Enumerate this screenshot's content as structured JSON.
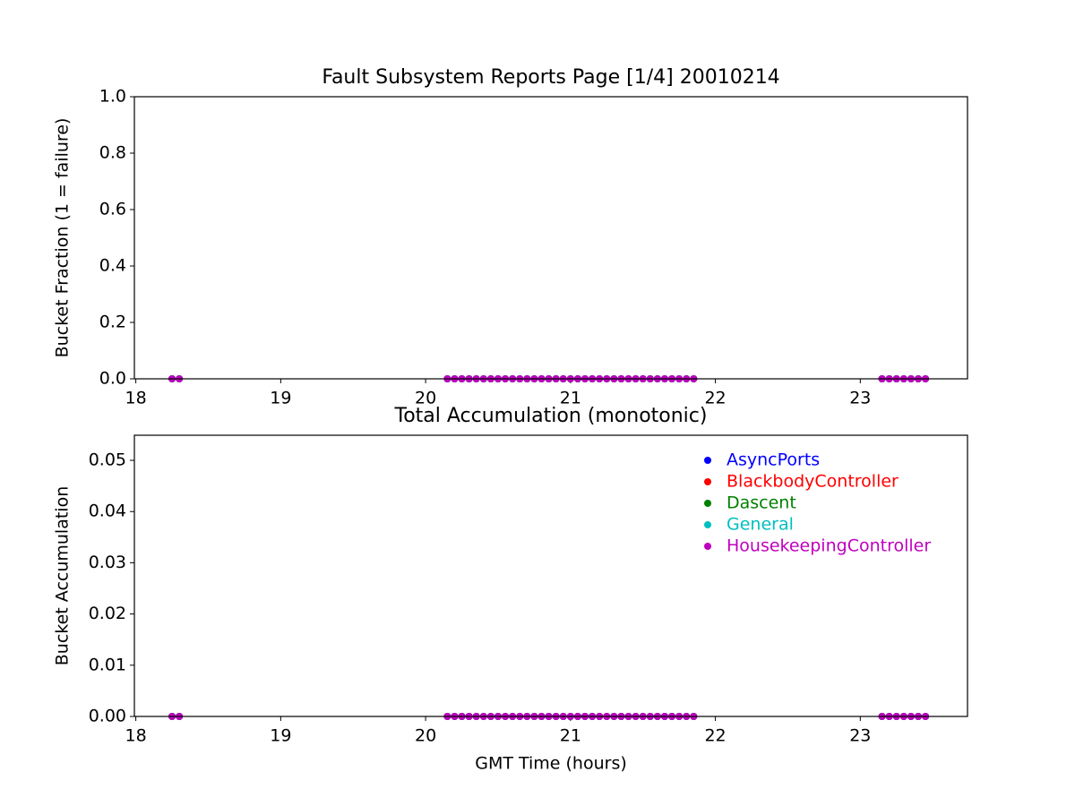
{
  "chart_data": [
    {
      "type": "scatter",
      "title": "Fault Subsystem Reports Page [1/4] 20010214",
      "y_label": "Bucket Fraction (1 = failure)",
      "x": [
        18.25,
        18.3,
        20.15,
        20.2,
        20.25,
        20.3,
        20.35,
        20.4,
        20.45,
        20.5,
        20.55,
        20.6,
        20.65,
        20.7,
        20.75,
        20.8,
        20.85,
        20.9,
        20.95,
        21.0,
        21.05,
        21.1,
        21.15,
        21.2,
        21.25,
        21.3,
        21.35,
        21.4,
        21.45,
        21.5,
        21.55,
        21.6,
        21.65,
        21.7,
        21.75,
        21.8,
        21.85,
        23.15,
        23.2,
        23.25,
        23.3,
        23.35,
        23.4,
        23.45
      ],
      "series": [
        {
          "color": "#0000ff",
          "values": [
            0,
            0,
            0,
            0,
            0,
            0,
            0,
            0,
            0,
            0,
            0,
            0,
            0,
            0,
            0,
            0,
            0,
            0,
            0,
            0,
            0,
            0,
            0,
            0,
            0,
            0,
            0,
            0,
            0,
            0,
            0,
            0,
            0,
            0,
            0,
            0,
            0,
            0,
            0,
            0,
            0,
            0,
            0,
            0
          ]
        },
        {
          "color": "#ff0000",
          "values": [
            0,
            0,
            0,
            0,
            0,
            0,
            0,
            0,
            0,
            0,
            0,
            0,
            0,
            0,
            0,
            0,
            0,
            0,
            0,
            0,
            0,
            0,
            0,
            0,
            0,
            0,
            0,
            0,
            0,
            0,
            0,
            0,
            0,
            0,
            0,
            0,
            0,
            0,
            0,
            0,
            0,
            0,
            0,
            0
          ]
        },
        {
          "color": "#008000",
          "values": [
            0,
            0,
            0,
            0,
            0,
            0,
            0,
            0,
            0,
            0,
            0,
            0,
            0,
            0,
            0,
            0,
            0,
            0,
            0,
            0,
            0,
            0,
            0,
            0,
            0,
            0,
            0,
            0,
            0,
            0,
            0,
            0,
            0,
            0,
            0,
            0,
            0,
            0,
            0,
            0,
            0,
            0,
            0,
            0
          ]
        },
        {
          "color": "#00bfbf",
          "values": [
            0,
            0,
            0,
            0,
            0,
            0,
            0,
            0,
            0,
            0,
            0,
            0,
            0,
            0,
            0,
            0,
            0,
            0,
            0,
            0,
            0,
            0,
            0,
            0,
            0,
            0,
            0,
            0,
            0,
            0,
            0,
            0,
            0,
            0,
            0,
            0,
            0,
            0,
            0,
            0,
            0,
            0,
            0,
            0
          ]
        },
        {
          "color": "#bf00bf",
          "values": [
            0,
            0,
            0,
            0,
            0,
            0,
            0,
            0,
            0,
            0,
            0,
            0,
            0,
            0,
            0,
            0,
            0,
            0,
            0,
            0,
            0,
            0,
            0,
            0,
            0,
            0,
            0,
            0,
            0,
            0,
            0,
            0,
            0,
            0,
            0,
            0,
            0,
            0,
            0,
            0,
            0,
            0,
            0,
            0
          ]
        }
      ],
      "xlim": [
        17.99,
        23.74
      ],
      "xticks": [
        18,
        19,
        20,
        21,
        22,
        23
      ],
      "ylim": [
        0,
        1
      ],
      "yticks": [
        {
          "value": 0,
          "label": "0.0"
        },
        {
          "value": 0.2,
          "label": "0.2"
        },
        {
          "value": 0.4,
          "label": "0.4"
        },
        {
          "value": 0.6,
          "label": "0.6"
        },
        {
          "value": 0.8,
          "label": "0.8"
        },
        {
          "value": 1,
          "label": "1.0"
        }
      ]
    },
    {
      "type": "scatter",
      "title": "Total Accumulation (monotonic)",
      "x_label": "GMT Time (hours)",
      "y_label": "Bucket Accumulation",
      "x": [
        18.25,
        18.3,
        20.15,
        20.2,
        20.25,
        20.3,
        20.35,
        20.4,
        20.45,
        20.5,
        20.55,
        20.6,
        20.65,
        20.7,
        20.75,
        20.8,
        20.85,
        20.9,
        20.95,
        21.0,
        21.05,
        21.1,
        21.15,
        21.2,
        21.25,
        21.3,
        21.35,
        21.4,
        21.45,
        21.5,
        21.55,
        21.6,
        21.65,
        21.7,
        21.75,
        21.8,
        21.85,
        23.15,
        23.2,
        23.25,
        23.3,
        23.35,
        23.4,
        23.45
      ],
      "series": [
        {
          "name": "AsyncPorts",
          "color": "#0000ff",
          "values": [
            0,
            0,
            0,
            0,
            0,
            0,
            0,
            0,
            0,
            0,
            0,
            0,
            0,
            0,
            0,
            0,
            0,
            0,
            0,
            0,
            0,
            0,
            0,
            0,
            0,
            0,
            0,
            0,
            0,
            0,
            0,
            0,
            0,
            0,
            0,
            0,
            0,
            0,
            0,
            0,
            0,
            0,
            0,
            0
          ]
        },
        {
          "name": "BlackbodyController",
          "color": "#ff0000",
          "values": [
            0,
            0,
            0,
            0,
            0,
            0,
            0,
            0,
            0,
            0,
            0,
            0,
            0,
            0,
            0,
            0,
            0,
            0,
            0,
            0,
            0,
            0,
            0,
            0,
            0,
            0,
            0,
            0,
            0,
            0,
            0,
            0,
            0,
            0,
            0,
            0,
            0,
            0,
            0,
            0,
            0,
            0,
            0,
            0
          ]
        },
        {
          "name": "Dascent",
          "color": "#008000",
          "values": [
            0,
            0,
            0,
            0,
            0,
            0,
            0,
            0,
            0,
            0,
            0,
            0,
            0,
            0,
            0,
            0,
            0,
            0,
            0,
            0,
            0,
            0,
            0,
            0,
            0,
            0,
            0,
            0,
            0,
            0,
            0,
            0,
            0,
            0,
            0,
            0,
            0,
            0,
            0,
            0,
            0,
            0,
            0,
            0
          ]
        },
        {
          "name": "General",
          "color": "#00bfbf",
          "values": [
            0,
            0,
            0,
            0,
            0,
            0,
            0,
            0,
            0,
            0,
            0,
            0,
            0,
            0,
            0,
            0,
            0,
            0,
            0,
            0,
            0,
            0,
            0,
            0,
            0,
            0,
            0,
            0,
            0,
            0,
            0,
            0,
            0,
            0,
            0,
            0,
            0,
            0,
            0,
            0,
            0,
            0,
            0,
            0
          ]
        },
        {
          "name": "HousekeepingController",
          "color": "#bf00bf",
          "values": [
            0,
            0,
            0,
            0,
            0,
            0,
            0,
            0,
            0,
            0,
            0,
            0,
            0,
            0,
            0,
            0,
            0,
            0,
            0,
            0,
            0,
            0,
            0,
            0,
            0,
            0,
            0,
            0,
            0,
            0,
            0,
            0,
            0,
            0,
            0,
            0,
            0,
            0,
            0,
            0,
            0,
            0,
            0,
            0
          ]
        }
      ],
      "xlim": [
        17.99,
        23.74
      ],
      "xticks": [
        18,
        19,
        20,
        21,
        22,
        23
      ],
      "ylim": [
        0,
        0.0549
      ],
      "yticks": [
        {
          "value": 0,
          "label": "0.00"
        },
        {
          "value": 0.01,
          "label": "0.01"
        },
        {
          "value": 0.02,
          "label": "0.02"
        },
        {
          "value": 0.03,
          "label": "0.03"
        },
        {
          "value": 0.04,
          "label": "0.04"
        },
        {
          "value": 0.05,
          "label": "0.05"
        }
      ],
      "legend": "upper right"
    }
  ]
}
